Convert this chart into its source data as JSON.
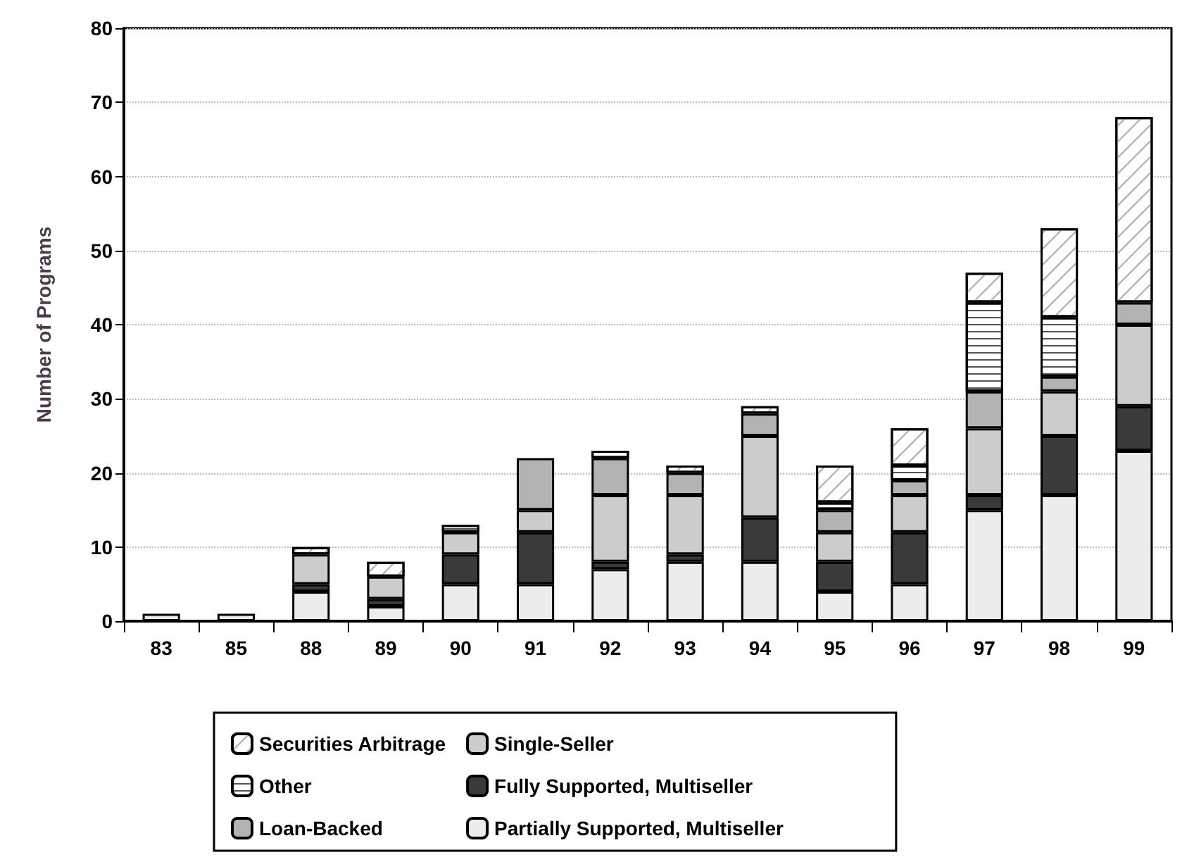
{
  "chart_data": {
    "type": "bar",
    "stacked": true,
    "ylabel": "Number of Programs",
    "categories": [
      "83",
      "85",
      "88",
      "89",
      "90",
      "91",
      "92",
      "93",
      "94",
      "95",
      "96",
      "97",
      "98",
      "99"
    ],
    "series": [
      {
        "name": "Partially Supported, Multiseller",
        "color": "#ececec",
        "values": [
          1,
          1,
          4,
          2,
          5,
          5,
          7,
          8,
          8,
          4,
          5,
          15,
          17,
          23
        ]
      },
      {
        "name": "Fully Supported, Multiseller",
        "color": "#3a3a3a",
        "values": [
          null,
          null,
          1,
          1,
          4,
          7,
          1,
          1,
          6,
          4,
          7,
          2,
          8,
          6
        ]
      },
      {
        "name": "Single-Seller",
        "color": "#cccccc",
        "values": [
          null,
          null,
          4,
          3,
          3,
          3,
          9,
          8,
          11,
          4,
          5,
          9,
          6,
          11
        ]
      },
      {
        "name": "Loan-Backed",
        "color": "#b3b3b3",
        "values": [
          null,
          null,
          null,
          null,
          null,
          7,
          5,
          3,
          3,
          3,
          2,
          5,
          2,
          3
        ]
      },
      {
        "name": "Other",
        "color": "#ffffff",
        "values": [
          null,
          null,
          null,
          null,
          1,
          null,
          1,
          null,
          null,
          1,
          2,
          12,
          8,
          null
        ]
      },
      {
        "name": "Securities Arbitrage",
        "color": "#ffffff",
        "values": [
          null,
          null,
          1,
          2,
          null,
          null,
          null,
          1,
          1,
          5,
          5,
          4,
          12,
          25
        ]
      }
    ],
    "ylim": [
      0,
      80
    ],
    "yticks": [
      0,
      10,
      20,
      30,
      40,
      50,
      60,
      70,
      80
    ],
    "grid": "y",
    "legend": "bottom"
  }
}
